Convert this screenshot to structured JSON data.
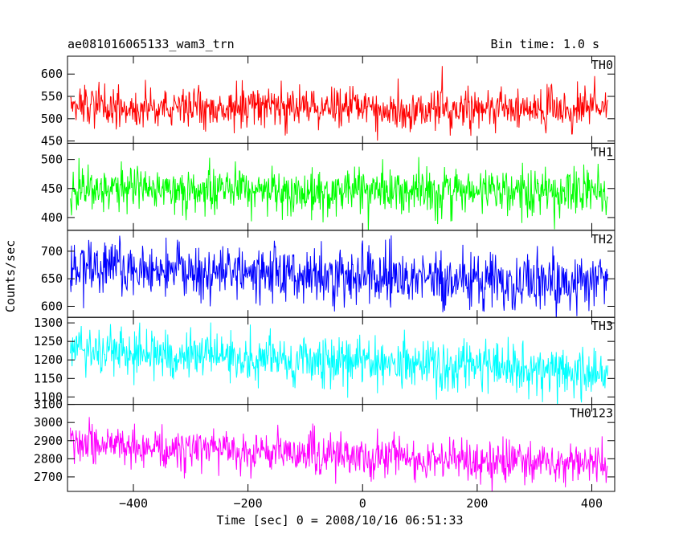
{
  "chart_data": {
    "type": "line",
    "title": "ae081016065133_wam3_trn",
    "bin_time_label": "Bin time: 1.0 s",
    "xlabel": "Time [sec] 0 = 2008/10/16 06:51:33",
    "ylabel": "Counts/sec",
    "xlim": [
      -515,
      440
    ],
    "x_ticks": [
      -400,
      -200,
      0,
      200,
      400
    ],
    "x_tick_labels": [
      "−400",
      "−200",
      "0",
      "200",
      "400"
    ],
    "panels": [
      {
        "name": "TH0",
        "color": "#ff0000",
        "ylim": [
          445,
          640
        ],
        "y_ticks": [
          450,
          500,
          550,
          600
        ],
        "y_tick_labels": [
          "450",
          "500",
          "550",
          "600"
        ],
        "series": {
          "x_start": -510,
          "x_end": 428,
          "x_step": 1,
          "mean_start": 528,
          "mean_end": 522,
          "noise_sigma": 23
        }
      },
      {
        "name": "TH1",
        "color": "#00ff00",
        "ylim": [
          378,
          528
        ],
        "y_ticks": [
          400,
          450,
          500
        ],
        "y_tick_labels": [
          "400",
          "450",
          "500"
        ],
        "series": {
          "x_start": -510,
          "x_end": 428,
          "x_step": 1,
          "mean_start": 448,
          "mean_end": 445,
          "noise_sigma": 21
        }
      },
      {
        "name": "TH2",
        "color": "#0000ff",
        "ylim": [
          580,
          738
        ],
        "y_ticks": [
          600,
          650,
          700
        ],
        "y_tick_labels": [
          "600",
          "650",
          "700"
        ],
        "series": {
          "x_start": -510,
          "x_end": 428,
          "x_step": 1,
          "mean_start": 672,
          "mean_end": 640,
          "noise_sigma": 25
        }
      },
      {
        "name": "TH3",
        "color": "#00ffff",
        "ylim": [
          1080,
          1315
        ],
        "y_ticks": [
          1100,
          1150,
          1200,
          1250,
          1300
        ],
        "y_tick_labels": [
          "1100",
          "1150",
          "1200",
          "1250",
          "1300"
        ],
        "series": {
          "x_start": -510,
          "x_end": 428,
          "x_step": 1,
          "mean_start": 1228,
          "mean_end": 1165,
          "noise_sigma": 33
        }
      },
      {
        "name": "TH0123",
        "color": "#ff00ff",
        "ylim": [
          2620,
          3100
        ],
        "y_ticks": [
          2700,
          2800,
          2900,
          3000,
          3100
        ],
        "y_tick_labels": [
          "2700",
          "2800",
          "2900",
          "3000",
          "3100"
        ],
        "series": {
          "x_start": -510,
          "x_end": 428,
          "x_step": 1,
          "mean_start": 2880,
          "mean_end": 2760,
          "noise_sigma": 55
        }
      }
    ]
  }
}
